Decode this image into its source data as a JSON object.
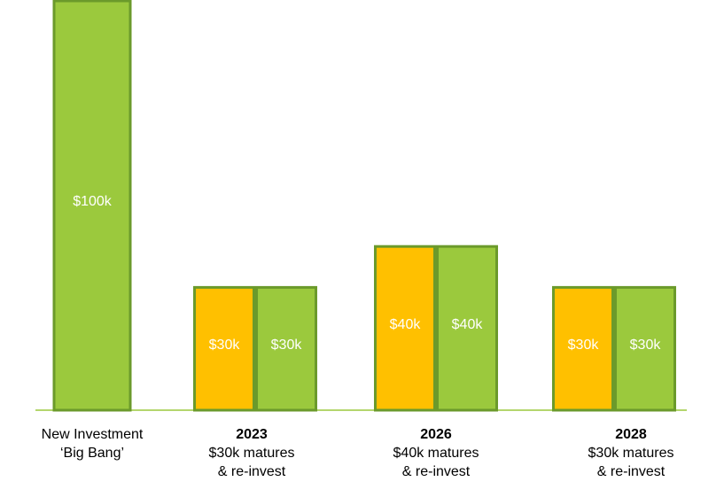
{
  "chart_data": {
    "type": "bar",
    "categories": [
      [
        "New Investment",
        "‘Big Bang’"
      ],
      [
        "2023",
        "$30k matures",
        "& re-invest"
      ],
      [
        "2026",
        "$40k matures",
        "& re-invest"
      ],
      [
        "2028",
        "$30k matures",
        "& re-invest"
      ]
    ],
    "bold_first_line": [
      false,
      true,
      true,
      true
    ],
    "series": [
      {
        "color": "#ffc000",
        "values": [
          null,
          30,
          40,
          30
        ],
        "value_labels": [
          null,
          "$30k",
          "$40k",
          "$30k"
        ]
      },
      {
        "color": "#9bc93d",
        "values": [
          100,
          30,
          40,
          30
        ],
        "value_labels": [
          "$100k",
          "$30k",
          "$40k",
          "$30k"
        ]
      }
    ],
    "ylim": [
      0,
      100
    ],
    "baseline_color": "#9bc93d",
    "bar_border_color": "#6b9a2b"
  }
}
